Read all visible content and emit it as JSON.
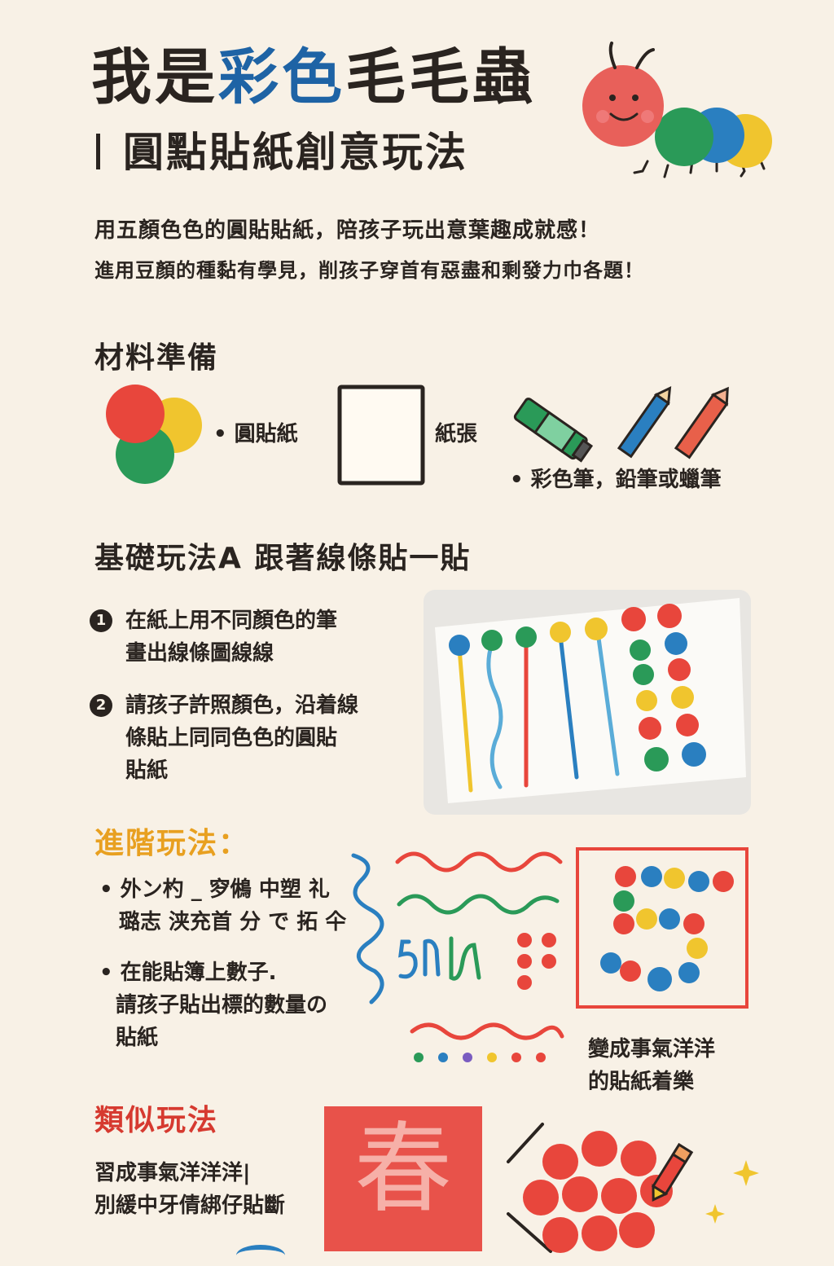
{
  "header": {
    "title_part1": "我是",
    "title_highlight": "彩色",
    "title_part2": "毛毛蟲",
    "subtitle": "圓點貼紙創意玩法"
  },
  "intro": {
    "line1": "用五顏色色的圓貼貼紙，陪孩子玩出意葉趣成就感！",
    "line2": "進用豆顏的種黏有學見，削孩子穿首有惡盡和剩發力巾各題！"
  },
  "materials": {
    "heading": "材料準備",
    "items": [
      {
        "label": "• 圓貼紙",
        "icon": "dot-stickers-icon"
      },
      {
        "label": "紙張",
        "icon": "paper-icon"
      },
      {
        "label": "• 彩色筆，鉛筆或蠟筆",
        "icon": "pens-icon"
      }
    ]
  },
  "basic": {
    "heading": "基礎玩法A  跟著線條貼一貼",
    "steps": [
      {
        "num": "1",
        "line1": "在紙上用不同顏色的筆",
        "line2": "畫出線條圖線線"
      },
      {
        "num": "2",
        "line1": "請孩子許照顏色，沿着線",
        "line2": "條貼上同同色色的圓貼",
        "line3": "貼紙"
      }
    ]
  },
  "advanced": {
    "heading": "進階玩法：",
    "bullets": [
      {
        "line1": "• 外ン杓 _ 穸鵂 中塑 礼",
        "line2": "璐志 浃充首 分 で 拓 仐"
      },
      {
        "line1": "• 在能貼簿上數子.",
        "line2": "請孩子貼出標的數量の",
        "line3": "貼紙"
      }
    ],
    "caption_line1": "變成事氣洋洋",
    "caption_line2": "的貼紙着樂"
  },
  "similar": {
    "heading": "類似玩法",
    "line1": "習成事氣洋洋洋|",
    "line2": "別緩中牙倩綁仔貼斷",
    "chun_char": "春"
  },
  "colors": {
    "red": "#e8463c",
    "green": "#2a9a58",
    "blue": "#2a7fc0",
    "yellow": "#f0c52e",
    "dark": "#2a2420",
    "title_blue": "#1e63a5",
    "orange": "#e8a020",
    "red_heading": "#d63a30"
  }
}
